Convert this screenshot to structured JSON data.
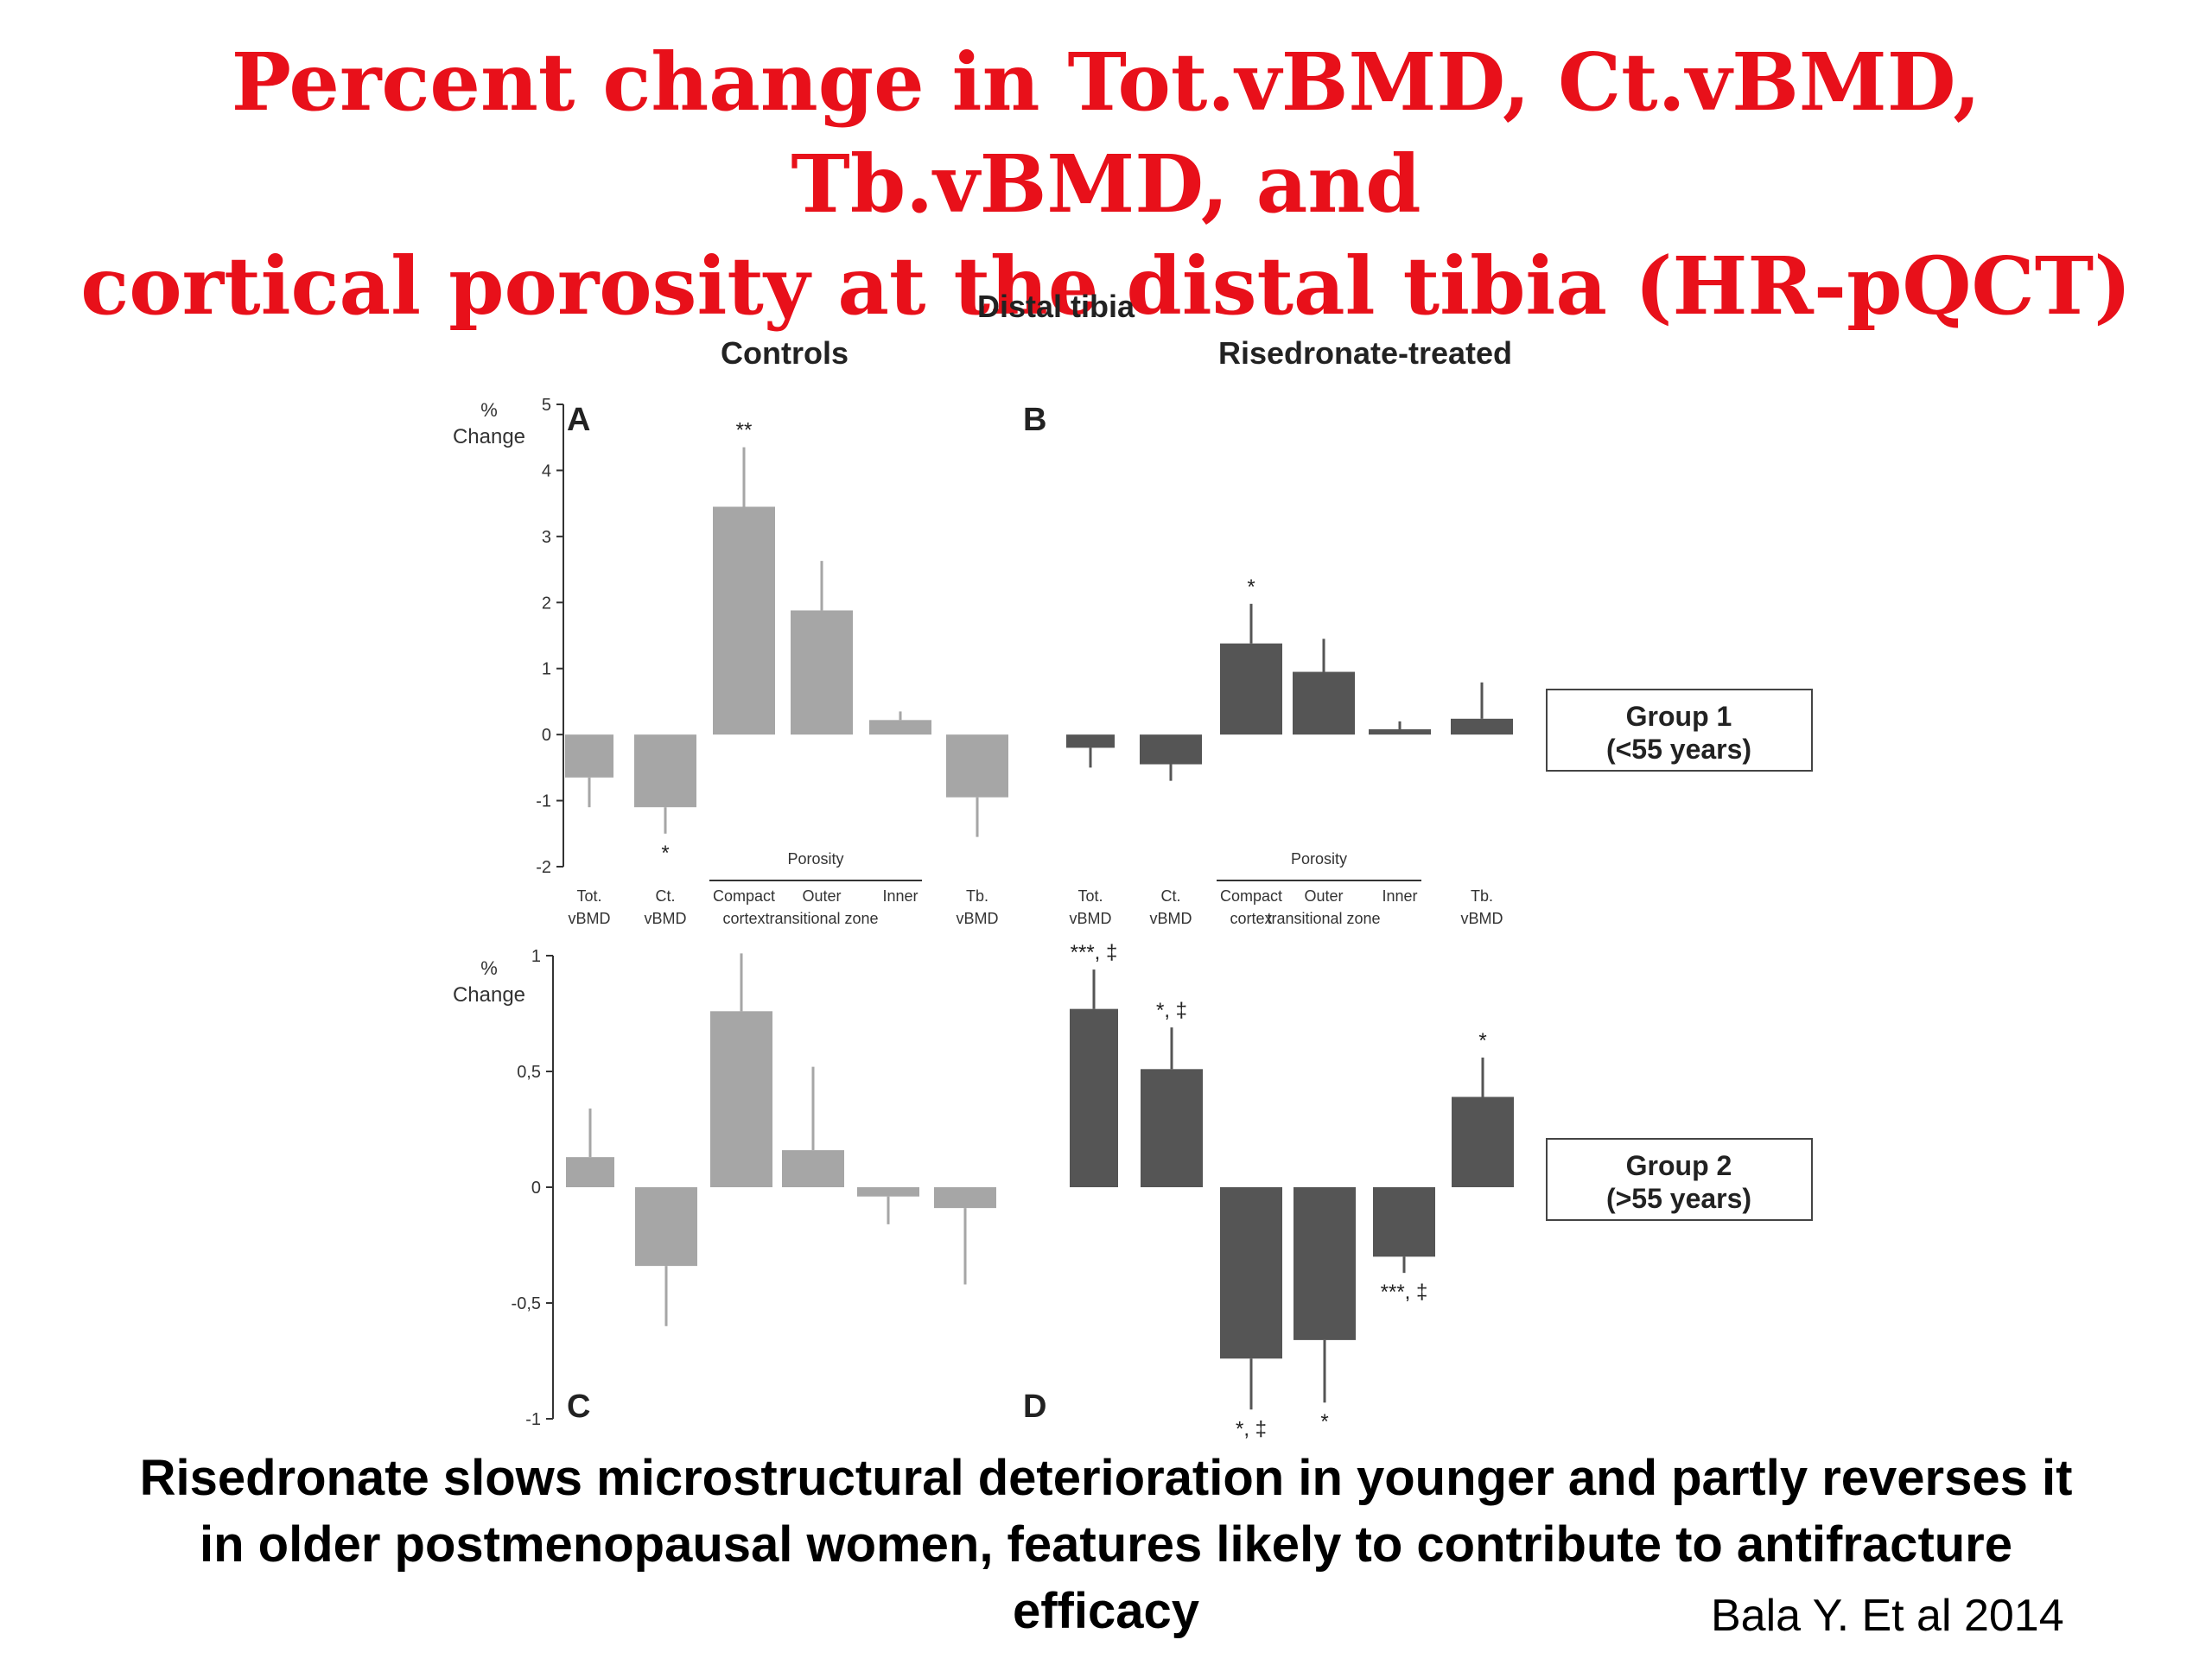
{
  "slide": {
    "title_line1": "Percent change in Tot.vBMD, Ct.vBMD, Tb.vBMD, and",
    "title_line2": "cortical porosity at the distal tibia (HR-pQCT)",
    "caption_line1": "Risedronate slows microstructural deterioration in younger and partly reverses it",
    "caption_line2": "in older postmenopausal women, features likely to contribute to antifracture",
    "caption_line3": "efficacy",
    "credit": "Bala Y. Et al 2014",
    "title_color": "#e8101a"
  },
  "figure": {
    "main_title": "Distal tibia",
    "column_titles": [
      "Controls",
      "Risedronate-treated"
    ],
    "group_boxes": [
      {
        "line1": "Group 1",
        "line2": "(<55 years)"
      },
      {
        "line1": "Group 2",
        "line2": "(>55 years)"
      }
    ],
    "porosity_label": "Porosity",
    "ylabel_line1": "%",
    "ylabel_line2": "Change",
    "controls_color": "#a6a6a6",
    "treated_color": "#555555"
  },
  "chart_data": [
    {
      "panel": "A",
      "type": "bar",
      "group": "Group 1 (<55 years)",
      "arm": "Controls",
      "categories": [
        [
          "Tot.",
          "vBMD"
        ],
        [
          "Ct.",
          "vBMD"
        ],
        [
          "Compact",
          "cortex"
        ],
        [
          "Outer",
          "transitional zone"
        ],
        [
          "Inner",
          ""
        ],
        [
          "Tb.",
          "vBMD"
        ]
      ],
      "values": [
        -0.65,
        -1.1,
        3.45,
        1.88,
        0.22,
        -0.95
      ],
      "errors": [
        0.45,
        0.4,
        0.9,
        0.75,
        0.13,
        0.6
      ],
      "annotations": [
        "",
        "*",
        "**",
        "",
        "",
        ""
      ],
      "ylim": [
        -2,
        5
      ],
      "yticks": [
        "-2",
        "-1",
        "0",
        "1",
        "2",
        "3",
        "4",
        "5"
      ]
    },
    {
      "panel": "B",
      "type": "bar",
      "group": "Group 1 (<55 years)",
      "arm": "Risedronate-treated",
      "categories": [
        [
          "Tot.",
          "vBMD"
        ],
        [
          "Ct.",
          "vBMD"
        ],
        [
          "Compact",
          "cortex"
        ],
        [
          "Outer",
          "transitional zone"
        ],
        [
          "Inner",
          ""
        ],
        [
          "Tb.",
          "vBMD"
        ]
      ],
      "values": [
        -0.2,
        -0.45,
        1.38,
        0.95,
        0.08,
        0.24
      ],
      "errors": [
        0.3,
        0.25,
        0.6,
        0.5,
        0.12,
        0.55
      ],
      "annotations": [
        "",
        "",
        "*",
        "",
        "",
        ""
      ],
      "ylim": [
        -2,
        5
      ]
    },
    {
      "panel": "C",
      "type": "bar",
      "group": "Group 2 (>55 years)",
      "arm": "Controls",
      "categories": [
        [
          "Tot.",
          "vBMD"
        ],
        [
          "Ct.",
          "vBMD"
        ],
        [
          "Compact",
          "cortex"
        ],
        [
          "Outer",
          "transitional zone"
        ],
        [
          "Inner",
          ""
        ],
        [
          "Tb.",
          "vBMD"
        ]
      ],
      "values": [
        0.13,
        -0.34,
        0.76,
        0.16,
        -0.04,
        -0.09
      ],
      "errors": [
        0.21,
        0.26,
        0.25,
        0.36,
        0.12,
        0.33
      ],
      "annotations": [
        "",
        "",
        "",
        "",
        "",
        ""
      ],
      "ylim": [
        -1,
        1
      ],
      "yticks": [
        "-1",
        "-0,5",
        "0",
        "0,5",
        "1"
      ]
    },
    {
      "panel": "D",
      "type": "bar",
      "group": "Group 2 (>55 years)",
      "arm": "Risedronate-treated",
      "categories": [
        [
          "Tot.",
          "vBMD"
        ],
        [
          "Ct.",
          "vBMD"
        ],
        [
          "Compact",
          "cortex"
        ],
        [
          "Outer",
          "transitional zone"
        ],
        [
          "Inner",
          ""
        ],
        [
          "Tb.",
          "vBMD"
        ]
      ],
      "values": [
        0.77,
        0.51,
        -0.74,
        -0.66,
        -0.3,
        0.39
      ],
      "errors": [
        0.17,
        0.18,
        0.22,
        0.27,
        0.07,
        0.17
      ],
      "annotations": [
        "***, ‡",
        "*, ‡",
        "*, ‡",
        "*",
        "***, ‡",
        "*"
      ],
      "ylim": [
        -1,
        1
      ]
    }
  ]
}
